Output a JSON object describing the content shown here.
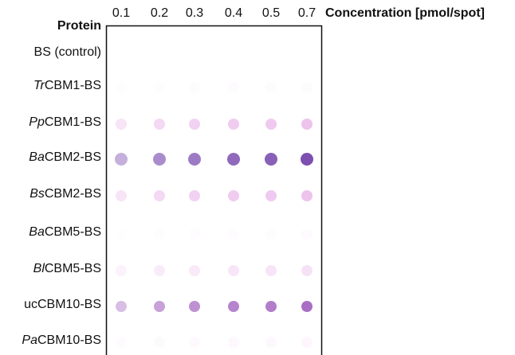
{
  "header": {
    "row_title": "Protein",
    "column_title": "Concentration [pmol/spot]"
  },
  "concentrations": [
    "0.1",
    "0.2",
    "0.3",
    "0.4",
    "0.5",
    "0.7"
  ],
  "rows": [
    {
      "name": "BS (control)"
    },
    {
      "prefix": "Tr",
      "name": "CBM1-BS"
    },
    {
      "prefix": "Pp",
      "name": "CBM1-BS"
    },
    {
      "prefix": "Ba",
      "name": "CBM2-BS"
    },
    {
      "prefix": "Bs",
      "name": "CBM2-BS"
    },
    {
      "prefix": "Ba",
      "name": "CBM5-BS"
    },
    {
      "prefix": "Bl",
      "name": "CBM5-BS"
    },
    {
      "name": "ucCBM10-BS"
    },
    {
      "prefix": "Pa",
      "name": "CBM10-BS"
    }
  ]
}
